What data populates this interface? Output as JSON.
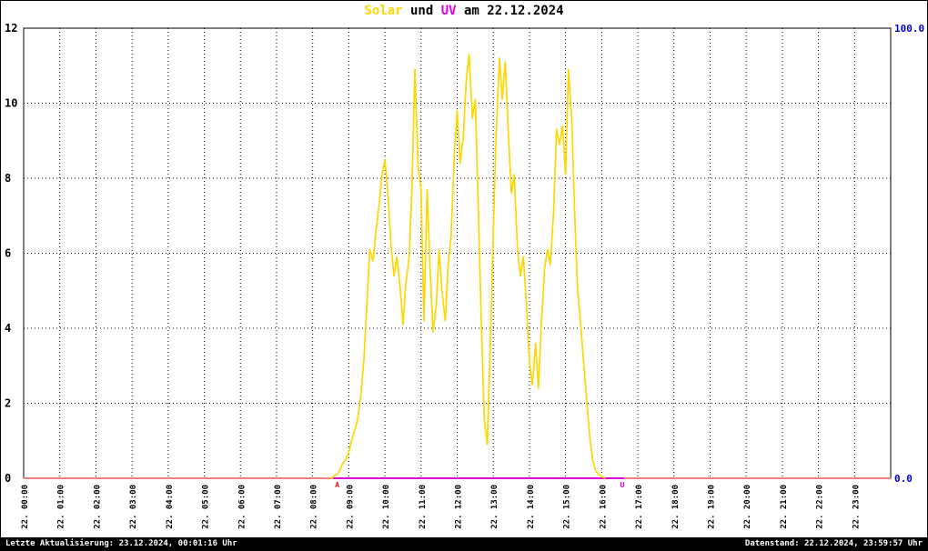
{
  "title": {
    "solar": "Solar",
    "sep": " und ",
    "uv": "UV",
    "tail": " am 22.12.2024"
  },
  "colors": {
    "solar": "#ffd700",
    "uv": "#dd00dd",
    "baseline": "#f08080",
    "marker_a": "#ff0000",
    "right_axis_text": "#0000cc",
    "axis_text": "#000000",
    "grid": "#000000",
    "background": "#ffffff",
    "footer_bg": "#000000",
    "footer_text": "#ffffff"
  },
  "footer": {
    "left": "Letzte Aktualisierung: 23.12.2024, 00:01:16 Uhr",
    "right": "Datenstand: 22.12.2024, 23:59:57 Uhr"
  },
  "chart_data": {
    "type": "line",
    "title": "Solar und UV am 22.12.2024",
    "date": "22.12.2024",
    "grid": true,
    "x_range_hours": [
      0,
      24
    ],
    "x_ticks": [
      "22. 00:00",
      "22. 01:00",
      "22. 02:00",
      "22. 03:00",
      "22. 04:00",
      "22. 05:00",
      "22. 06:00",
      "22. 07:00",
      "22. 08:00",
      "22. 09:00",
      "22. 10:00",
      "22. 11:00",
      "22. 12:00",
      "22. 13:00",
      "22. 14:00",
      "22. 15:00",
      "22. 16:00",
      "22. 17:00",
      "22. 18:00",
      "22. 19:00",
      "22. 20:00",
      "22. 21:00",
      "22. 22:00",
      "22. 23:00"
    ],
    "y_left": {
      "range": [
        0,
        12
      ],
      "ticks": [
        0,
        2,
        4,
        6,
        8,
        10,
        12
      ]
    },
    "y_right": {
      "range": [
        0,
        100
      ],
      "tick_labels": [
        {
          "label": "100.0",
          "value": 100
        },
        {
          "label": "0.0",
          "value": 0
        }
      ]
    },
    "series": [
      {
        "name": "Solar",
        "axis": "left",
        "color": "#ffd700",
        "x_hours": [
          8.5,
          8.58,
          8.67,
          8.75,
          8.83,
          8.92,
          9.0,
          9.08,
          9.17,
          9.25,
          9.33,
          9.42,
          9.5,
          9.58,
          9.67,
          9.75,
          9.83,
          9.92,
          10.0,
          10.08,
          10.17,
          10.25,
          10.33,
          10.42,
          10.5,
          10.58,
          10.67,
          10.75,
          10.83,
          10.92,
          11.0,
          11.08,
          11.17,
          11.25,
          11.33,
          11.42,
          11.5,
          11.58,
          11.67,
          11.75,
          11.83,
          11.92,
          12.0,
          12.08,
          12.17,
          12.25,
          12.33,
          12.42,
          12.5,
          12.58,
          12.67,
          12.75,
          12.83,
          12.92,
          13.0,
          13.08,
          13.17,
          13.25,
          13.33,
          13.42,
          13.5,
          13.58,
          13.67,
          13.75,
          13.83,
          13.92,
          14.0,
          14.08,
          14.17,
          14.25,
          14.33,
          14.42,
          14.5,
          14.58,
          14.67,
          14.75,
          14.83,
          14.92,
          15.0,
          15.08,
          15.17,
          15.25,
          15.33,
          15.42,
          15.5,
          15.58,
          15.67,
          15.75,
          15.83,
          15.92,
          16.0,
          16.08
        ],
        "values": [
          0,
          0.05,
          0.1,
          0.2,
          0.4,
          0.5,
          0.7,
          1.0,
          1.3,
          1.6,
          2.2,
          3.2,
          4.6,
          6.1,
          5.8,
          6.6,
          7.2,
          8.1,
          8.5,
          7.6,
          6.2,
          5.4,
          5.9,
          5.1,
          4.1,
          5.2,
          5.9,
          7.8,
          10.9,
          8.3,
          7.7,
          4.2,
          7.7,
          5.6,
          3.9,
          4.6,
          6.1,
          5.0,
          4.2,
          5.7,
          6.4,
          8.6,
          9.8,
          8.4,
          9.1,
          10.6,
          11.3,
          9.6,
          10.1,
          7.4,
          4.1,
          1.6,
          0.9,
          3.6,
          6.6,
          9.2,
          11.2,
          10.1,
          11.1,
          9.1,
          7.6,
          8.1,
          6.1,
          5.4,
          5.9,
          4.6,
          3.1,
          2.5,
          3.6,
          2.4,
          4.1,
          5.6,
          6.1,
          5.7,
          7.1,
          9.3,
          8.9,
          9.4,
          8.1,
          10.9,
          9.6,
          7.1,
          5.1,
          4.1,
          3.1,
          2.1,
          1.1,
          0.5,
          0.2,
          0.1,
          0.05,
          0
        ]
      },
      {
        "name": "UV",
        "axis": "right",
        "color": "#dd00dd",
        "x_hours": [
          8.6,
          16.6
        ],
        "values": [
          0,
          0
        ]
      },
      {
        "name": "Solar-Grundlinie",
        "axis": "left",
        "color": "#f08080",
        "x_hours": [
          0,
          24
        ],
        "values": [
          0,
          0
        ]
      }
    ],
    "markers": [
      {
        "label": "A",
        "hour": 8.68,
        "color": "#ff0000"
      },
      {
        "label": "U",
        "hour": 16.57,
        "color": "#dd00dd"
      }
    ]
  }
}
